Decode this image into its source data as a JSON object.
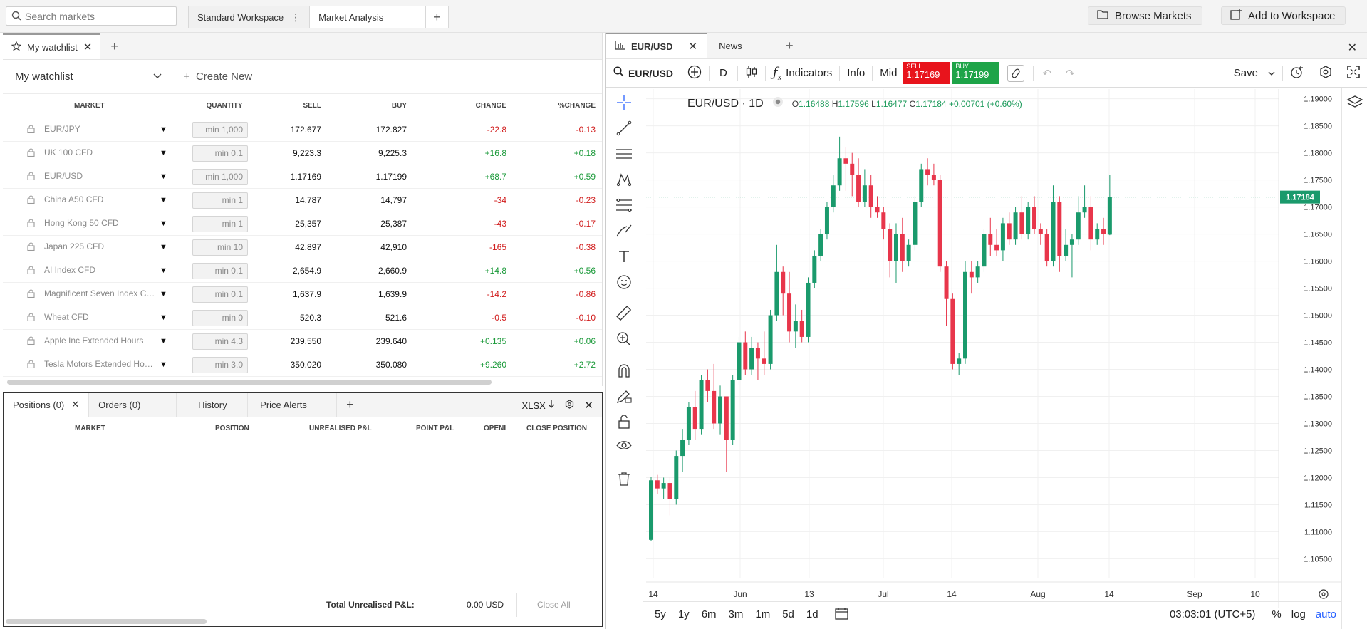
{
  "topbar": {
    "search_placeholder": "Search markets",
    "workspace_tabs": [
      "Standard Workspace",
      "Market Analysis"
    ],
    "browse_label": "Browse Markets",
    "add_workspace_label": "Add to Workspace"
  },
  "watchlist": {
    "tab_label": "My watchlist",
    "selected": "My watchlist",
    "create_new": "Create New",
    "columns": {
      "market": "MARKET",
      "quantity": "QUANTITY",
      "sell": "SELL",
      "buy": "BUY",
      "change": "CHANGE",
      "pct": "%CHANGE"
    },
    "rows": [
      {
        "market": "EUR/JPY",
        "qty": "min 1,000",
        "sell": "172.677",
        "buy": "172.827",
        "change": "-22.8",
        "pct": "-0.13",
        "dir": "neg"
      },
      {
        "market": "UK 100 CFD",
        "qty": "min 0.1",
        "sell": "9,223.3",
        "buy": "9,225.3",
        "change": "+16.8",
        "pct": "+0.18",
        "dir": "pos"
      },
      {
        "market": "EUR/USD",
        "qty": "min 1,000",
        "sell": "1.17169",
        "buy": "1.17199",
        "change": "+68.7",
        "pct": "+0.59",
        "dir": "pos"
      },
      {
        "market": "China A50 CFD",
        "qty": "min 1",
        "sell": "14,787",
        "buy": "14,797",
        "change": "-34",
        "pct": "-0.23",
        "dir": "neg"
      },
      {
        "market": "Hong Kong 50 CFD",
        "qty": "min 1",
        "sell": "25,357",
        "buy": "25,387",
        "change": "-43",
        "pct": "-0.17",
        "dir": "neg"
      },
      {
        "market": "Japan 225 CFD",
        "qty": "min 10",
        "sell": "42,897",
        "buy": "42,910",
        "change": "-165",
        "pct": "-0.38",
        "dir": "neg"
      },
      {
        "market": "AI Index CFD",
        "qty": "min 0.1",
        "sell": "2,654.9",
        "buy": "2,660.9",
        "change": "+14.8",
        "pct": "+0.56",
        "dir": "pos"
      },
      {
        "market": "Magnificent Seven Index CFD",
        "qty": "min 0.1",
        "sell": "1,637.9",
        "buy": "1,639.9",
        "change": "-14.2",
        "pct": "-0.86",
        "dir": "neg"
      },
      {
        "market": "Wheat CFD",
        "qty": "min 0",
        "sell": "520.3",
        "buy": "521.6",
        "change": "-0.5",
        "pct": "-0.10",
        "dir": "neg"
      },
      {
        "market": "Apple Inc Extended Hours",
        "qty": "min 4.3",
        "sell": "239.550",
        "buy": "239.640",
        "change": "+0.135",
        "pct": "+0.06",
        "dir": "pos"
      },
      {
        "market": "Tesla Motors Extended Hours",
        "qty": "min 3.0",
        "sell": "350.020",
        "buy": "350.080",
        "change": "+9.260",
        "pct": "+2.72",
        "dir": "pos"
      }
    ]
  },
  "positions": {
    "tabs": [
      "Positions (0)",
      "Orders (0)",
      "History",
      "Price Alerts"
    ],
    "export_label": "XLSX",
    "columns": [
      "MARKET",
      "POSITION",
      "UNREALISED P&L",
      "POINT P&L",
      "OPENI",
      "CLOSE POSITION"
    ],
    "total_label": "Total Unrealised P&L:",
    "total_value": "0.00 USD",
    "close_all": "Close All"
  },
  "chart": {
    "tabs": [
      "EUR/USD",
      "News"
    ],
    "symbol": "EUR/USD",
    "interval": "D",
    "indicators_label": "Indicators",
    "info_label": "Info",
    "mid_label": "Mid",
    "sell": {
      "label": "SELL",
      "price": "1.17169"
    },
    "buy": {
      "label": "BUY",
      "price": "1.17199"
    },
    "save_label": "Save",
    "legend_title": "EUR/USD · 1D",
    "ohlc": {
      "o": "1.16488",
      "h": "1.17596",
      "l": "1.16477",
      "c": "1.17184",
      "chg": "+0.00701 (+0.60%)"
    },
    "last_price": "1.17184",
    "ranges": [
      "5y",
      "1y",
      "6m",
      "3m",
      "1m",
      "5d",
      "1d"
    ],
    "time": "03:03:01 (UTC+5)",
    "pct_label": "%",
    "log_label": "log",
    "auto_label": "auto",
    "colors": {
      "up": "#1a9a6c",
      "down": "#e8364b",
      "sell_bg": "#e8141c",
      "buy_bg": "#1ea448",
      "accent": "#2962ff"
    }
  },
  "chart_data": {
    "type": "candlestick",
    "title": "EUR/USD · 1D",
    "ylim": [
      1.1015,
      1.1918
    ],
    "y_ticks": [
      "1.19000",
      "1.18500",
      "1.18000",
      "1.17500",
      "1.17000",
      "1.16500",
      "1.16000",
      "1.15500",
      "1.15000",
      "1.14500",
      "1.14000",
      "1.13500",
      "1.13000",
      "1.12500",
      "1.12000",
      "1.11500",
      "1.11000",
      "1.10500"
    ],
    "x_ticks": [
      "14",
      "Jun",
      "13",
      "Jul",
      "14",
      "Aug",
      "14",
      "Sep",
      "10"
    ],
    "candles": [
      [
        1.1085,
        1.1202,
        1.1083,
        1.1195
      ],
      [
        1.1195,
        1.1205,
        1.117,
        1.118
      ],
      [
        1.118,
        1.12,
        1.116,
        1.119
      ],
      [
        1.119,
        1.12,
        1.113,
        1.116
      ],
      [
        1.116,
        1.125,
        1.115,
        1.124
      ],
      [
        1.124,
        1.129,
        1.121,
        1.127
      ],
      [
        1.127,
        1.134,
        1.126,
        1.133
      ],
      [
        1.133,
        1.136,
        1.127,
        1.129
      ],
      [
        1.129,
        1.139,
        1.128,
        1.138
      ],
      [
        1.138,
        1.14,
        1.134,
        1.136
      ],
      [
        1.136,
        1.141,
        1.129,
        1.13
      ],
      [
        1.13,
        1.137,
        1.128,
        1.135
      ],
      [
        1.135,
        1.135,
        1.121,
        1.127
      ],
      [
        1.127,
        1.139,
        1.126,
        1.138
      ],
      [
        1.138,
        1.146,
        1.137,
        1.145
      ],
      [
        1.145,
        1.147,
        1.139,
        1.14
      ],
      [
        1.14,
        1.146,
        1.139,
        1.144
      ],
      [
        1.144,
        1.145,
        1.138,
        1.142
      ],
      [
        1.142,
        1.147,
        1.139,
        1.141
      ],
      [
        1.141,
        1.151,
        1.14,
        1.15
      ],
      [
        1.15,
        1.163,
        1.149,
        1.158
      ],
      [
        1.158,
        1.159,
        1.15,
        1.154
      ],
      [
        1.154,
        1.158,
        1.145,
        1.147
      ],
      [
        1.147,
        1.152,
        1.144,
        1.149
      ],
      [
        1.149,
        1.151,
        1.145,
        1.146
      ],
      [
        1.146,
        1.157,
        1.145,
        1.156
      ],
      [
        1.156,
        1.162,
        1.155,
        1.161
      ],
      [
        1.161,
        1.166,
        1.16,
        1.165
      ],
      [
        1.165,
        1.171,
        1.164,
        1.17
      ],
      [
        1.17,
        1.176,
        1.169,
        1.174
      ],
      [
        1.174,
        1.183,
        1.173,
        1.179
      ],
      [
        1.179,
        1.181,
        1.173,
        1.178
      ],
      [
        1.178,
        1.18,
        1.172,
        1.176
      ],
      [
        1.176,
        1.179,
        1.17,
        1.171
      ],
      [
        1.171,
        1.177,
        1.17,
        1.174
      ],
      [
        1.174,
        1.176,
        1.168,
        1.17
      ],
      [
        1.17,
        1.172,
        1.168,
        1.169
      ],
      [
        1.169,
        1.17,
        1.164,
        1.166
      ],
      [
        1.166,
        1.167,
        1.157,
        1.16
      ],
      [
        1.16,
        1.167,
        1.156,
        1.165
      ],
      [
        1.165,
        1.168,
        1.158,
        1.16
      ],
      [
        1.16,
        1.164,
        1.159,
        1.163
      ],
      [
        1.163,
        1.172,
        1.162,
        1.171
      ],
      [
        1.171,
        1.178,
        1.17,
        1.177
      ],
      [
        1.177,
        1.179,
        1.174,
        1.176
      ],
      [
        1.176,
        1.178,
        1.174,
        1.175
      ],
      [
        1.175,
        1.176,
        1.158,
        1.159
      ],
      [
        1.159,
        1.16,
        1.148,
        1.153
      ],
      [
        1.153,
        1.154,
        1.14,
        1.141
      ],
      [
        1.141,
        1.143,
        1.139,
        1.142
      ],
      [
        1.142,
        1.16,
        1.141,
        1.158
      ],
      [
        1.158,
        1.16,
        1.154,
        1.157
      ],
      [
        1.157,
        1.16,
        1.156,
        1.159
      ],
      [
        1.159,
        1.166,
        1.158,
        1.165
      ],
      [
        1.165,
        1.168,
        1.161,
        1.163
      ],
      [
        1.163,
        1.166,
        1.161,
        1.162
      ],
      [
        1.162,
        1.168,
        1.16,
        1.167
      ],
      [
        1.167,
        1.169,
        1.163,
        1.164
      ],
      [
        1.164,
        1.17,
        1.163,
        1.169
      ],
      [
        1.169,
        1.172,
        1.164,
        1.165
      ],
      [
        1.165,
        1.171,
        1.164,
        1.17
      ],
      [
        1.17,
        1.172,
        1.165,
        1.166
      ],
      [
        1.166,
        1.167,
        1.163,
        1.165
      ],
      [
        1.165,
        1.166,
        1.159,
        1.16
      ],
      [
        1.16,
        1.174,
        1.159,
        1.171
      ],
      [
        1.171,
        1.172,
        1.158,
        1.161
      ],
      [
        1.161,
        1.166,
        1.16,
        1.163
      ],
      [
        1.163,
        1.165,
        1.157,
        1.164
      ],
      [
        1.164,
        1.172,
        1.163,
        1.169
      ],
      [
        1.169,
        1.174,
        1.168,
        1.17
      ],
      [
        1.17,
        1.172,
        1.162,
        1.164
      ],
      [
        1.164,
        1.167,
        1.163,
        1.166
      ],
      [
        1.166,
        1.168,
        1.163,
        1.165
      ],
      [
        1.1649,
        1.176,
        1.1648,
        1.1718
      ]
    ]
  }
}
